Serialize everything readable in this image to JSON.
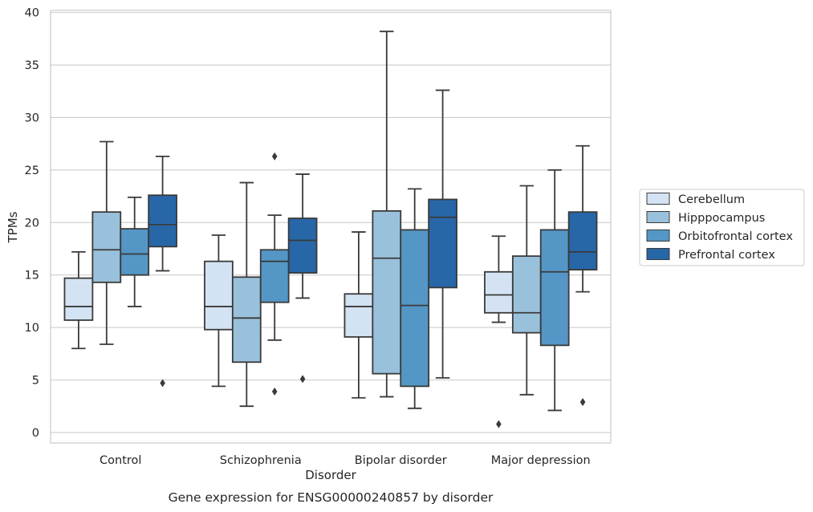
{
  "chart_data": {
    "type": "boxplot",
    "xlabel": "Disorder",
    "ylabel": "TPMs",
    "caption": "Gene expression for ENSG00000240857 by disorder",
    "ylim": [
      -1,
      40.2
    ],
    "yticks": [
      0,
      5,
      10,
      15,
      20,
      25,
      30,
      35,
      40
    ],
    "grid": "horizontal",
    "legend_position": "right",
    "categories": [
      "Control",
      "Schizophrenia",
      "Bipolar disorder",
      "Major depression"
    ],
    "series": [
      {
        "name": "Cerebellum",
        "color": "#d4e3f3",
        "boxes": [
          {
            "whislo": 8.0,
            "q1": 10.7,
            "med": 12.0,
            "q3": 14.7,
            "whishi": 17.2,
            "fliers": []
          },
          {
            "whislo": 4.4,
            "q1": 9.8,
            "med": 12.0,
            "q3": 16.3,
            "whishi": 18.8,
            "fliers": []
          },
          {
            "whislo": 3.3,
            "q1": 9.1,
            "med": 12.0,
            "q3": 13.2,
            "whishi": 19.1,
            "fliers": []
          },
          {
            "whislo": 10.5,
            "q1": 11.4,
            "med": 13.1,
            "q3": 15.3,
            "whishi": 18.7,
            "fliers": [
              0.8
            ]
          }
        ]
      },
      {
        "name": "Hipppocampus",
        "color": "#9ac1db",
        "boxes": [
          {
            "whislo": 8.4,
            "q1": 14.3,
            "med": 17.4,
            "q3": 21.0,
            "whishi": 27.7,
            "fliers": []
          },
          {
            "whislo": 2.5,
            "q1": 6.7,
            "med": 10.9,
            "q3": 14.8,
            "whishi": 23.8,
            "fliers": []
          },
          {
            "whislo": 3.4,
            "q1": 5.6,
            "med": 16.6,
            "q3": 21.1,
            "whishi": 38.2,
            "fliers": []
          },
          {
            "whislo": 3.6,
            "q1": 9.5,
            "med": 11.4,
            "q3": 16.8,
            "whishi": 23.5,
            "fliers": []
          }
        ]
      },
      {
        "name": "Orbitofrontal cortex",
        "color": "#5497c6",
        "boxes": [
          {
            "whislo": 12.0,
            "q1": 15.0,
            "med": 17.0,
            "q3": 19.4,
            "whishi": 22.4,
            "fliers": []
          },
          {
            "whislo": 8.8,
            "q1": 12.4,
            "med": 16.3,
            "q3": 17.4,
            "whishi": 20.7,
            "fliers": [
              26.3,
              3.9
            ]
          },
          {
            "whislo": 2.3,
            "q1": 4.4,
            "med": 12.1,
            "q3": 19.3,
            "whishi": 23.2,
            "fliers": []
          },
          {
            "whislo": 2.1,
            "q1": 8.3,
            "med": 15.3,
            "q3": 19.3,
            "whishi": 25.0,
            "fliers": []
          }
        ]
      },
      {
        "name": "Prefrontal cortex",
        "color": "#2767a8",
        "boxes": [
          {
            "whislo": 15.4,
            "q1": 17.7,
            "med": 19.8,
            "q3": 22.6,
            "whishi": 26.3,
            "fliers": [
              4.7
            ]
          },
          {
            "whislo": 12.8,
            "q1": 15.2,
            "med": 18.3,
            "q3": 20.4,
            "whishi": 24.6,
            "fliers": [
              5.1
            ]
          },
          {
            "whislo": 5.2,
            "q1": 13.8,
            "med": 20.5,
            "q3": 22.2,
            "whishi": 32.6,
            "fliers": []
          },
          {
            "whislo": 13.4,
            "q1": 15.5,
            "med": 17.2,
            "q3": 21.0,
            "whishi": 27.3,
            "fliers": [
              2.9
            ]
          }
        ]
      }
    ]
  }
}
